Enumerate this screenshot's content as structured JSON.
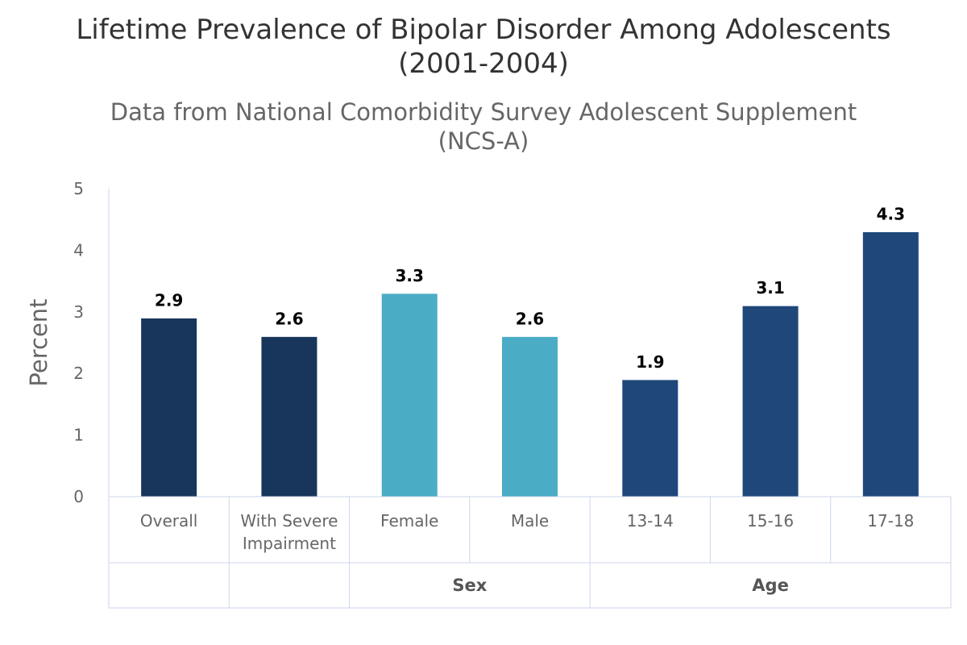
{
  "chart_data": {
    "type": "bar",
    "title_lines": [
      "Lifetime Prevalence of Bipolar Disorder Among Adolescents",
      "(2001-2004)"
    ],
    "subtitle_lines": [
      "Data from National Comorbidity Survey Adolescent Supplement",
      "(NCS-A)"
    ],
    "ylabel": "Percent",
    "ylim": [
      0,
      5
    ],
    "yticks": [
      "0",
      "1",
      "2",
      "3",
      "4",
      "5"
    ],
    "grid": false,
    "legend": "none",
    "categories": [
      {
        "lines": [
          "Overall"
        ]
      },
      {
        "lines": [
          "With Severe",
          "Impairment"
        ]
      },
      {
        "lines": [
          "Female"
        ]
      },
      {
        "lines": [
          "Male"
        ]
      },
      {
        "lines": [
          "13-14"
        ]
      },
      {
        "lines": [
          "15-16"
        ]
      },
      {
        "lines": [
          "17-18"
        ]
      }
    ],
    "values": [
      2.9,
      2.6,
      3.3,
      2.6,
      1.9,
      3.1,
      4.3
    ],
    "value_labels": [
      "2.9",
      "2.6",
      "3.3",
      "2.6",
      "1.9",
      "3.1",
      "4.3"
    ],
    "bar_colors": [
      "#18365B",
      "#18365B",
      "#4BACC6",
      "#4BACC6",
      "#1F477A",
      "#1F477A",
      "#1F477A"
    ],
    "groups": [
      {
        "label": "",
        "span": [
          0,
          0
        ]
      },
      {
        "label": "",
        "span": [
          1,
          1
        ]
      },
      {
        "label": "Sex",
        "span": [
          2,
          3
        ]
      },
      {
        "label": "Age",
        "span": [
          4,
          6
        ]
      }
    ]
  }
}
